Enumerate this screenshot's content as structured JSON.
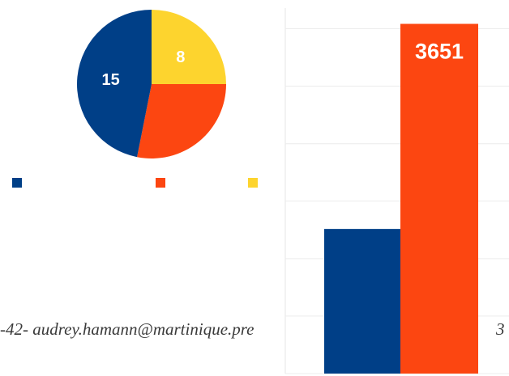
{
  "chart_data": [
    {
      "type": "pie",
      "values": [
        8,
        9,
        15
      ],
      "value_labels": [
        "8",
        null,
        "15"
      ],
      "colors": [
        "#fdd42e",
        "#fc4611",
        "#003f87"
      ]
    },
    {
      "type": "bar",
      "values": [
        1510,
        3651
      ],
      "value_labels": [
        null,
        "3651"
      ],
      "colors": [
        "#003f87",
        "#fc4611"
      ],
      "ylim": [
        0,
        3900
      ],
      "yticks": [
        0,
        600,
        1200,
        1800,
        2400,
        3000,
        3600
      ],
      "grid": true
    }
  ],
  "footer": {
    "left": "-42-  audrey.hamann@martinique.pre",
    "right": "3"
  }
}
